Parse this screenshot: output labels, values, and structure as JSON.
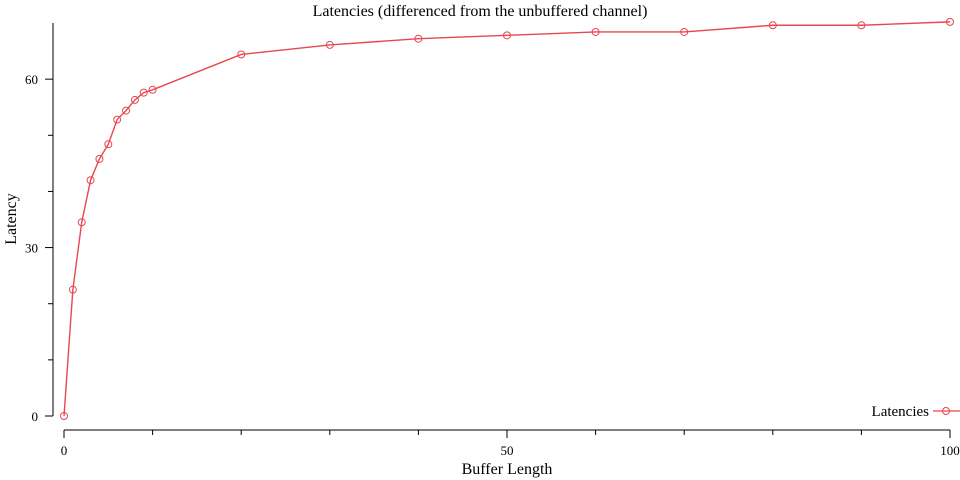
{
  "chart_data": {
    "type": "line",
    "title": "Latencies (differenced from the unbuffered channel)",
    "xlabel": "Buffer Length",
    "ylabel": "Latency",
    "xlim": [
      0,
      100
    ],
    "ylim": [
      0,
      70
    ],
    "x_ticks_major": [
      0,
      50,
      100
    ],
    "x_ticks_minor": [
      10,
      20,
      30,
      40,
      60,
      70,
      80,
      90
    ],
    "y_ticks_major": [
      0,
      30,
      60
    ],
    "y_ticks_minor": [
      10,
      20,
      40,
      50
    ],
    "legend_position": "bottom-right",
    "series": [
      {
        "name": "Latencies",
        "color": "#e8474f",
        "marker": "circle",
        "x": [
          0,
          1,
          2,
          3,
          4,
          5,
          6,
          7,
          8,
          9,
          10,
          20,
          30,
          40,
          50,
          60,
          70,
          80,
          90,
          100
        ],
        "y": [
          0,
          22.5,
          34.5,
          42.0,
          45.8,
          48.4,
          52.8,
          54.4,
          56.3,
          57.6,
          58.1,
          64.4,
          66.1,
          67.2,
          67.8,
          68.4,
          68.4,
          69.6,
          69.6,
          70.2
        ]
      }
    ]
  }
}
